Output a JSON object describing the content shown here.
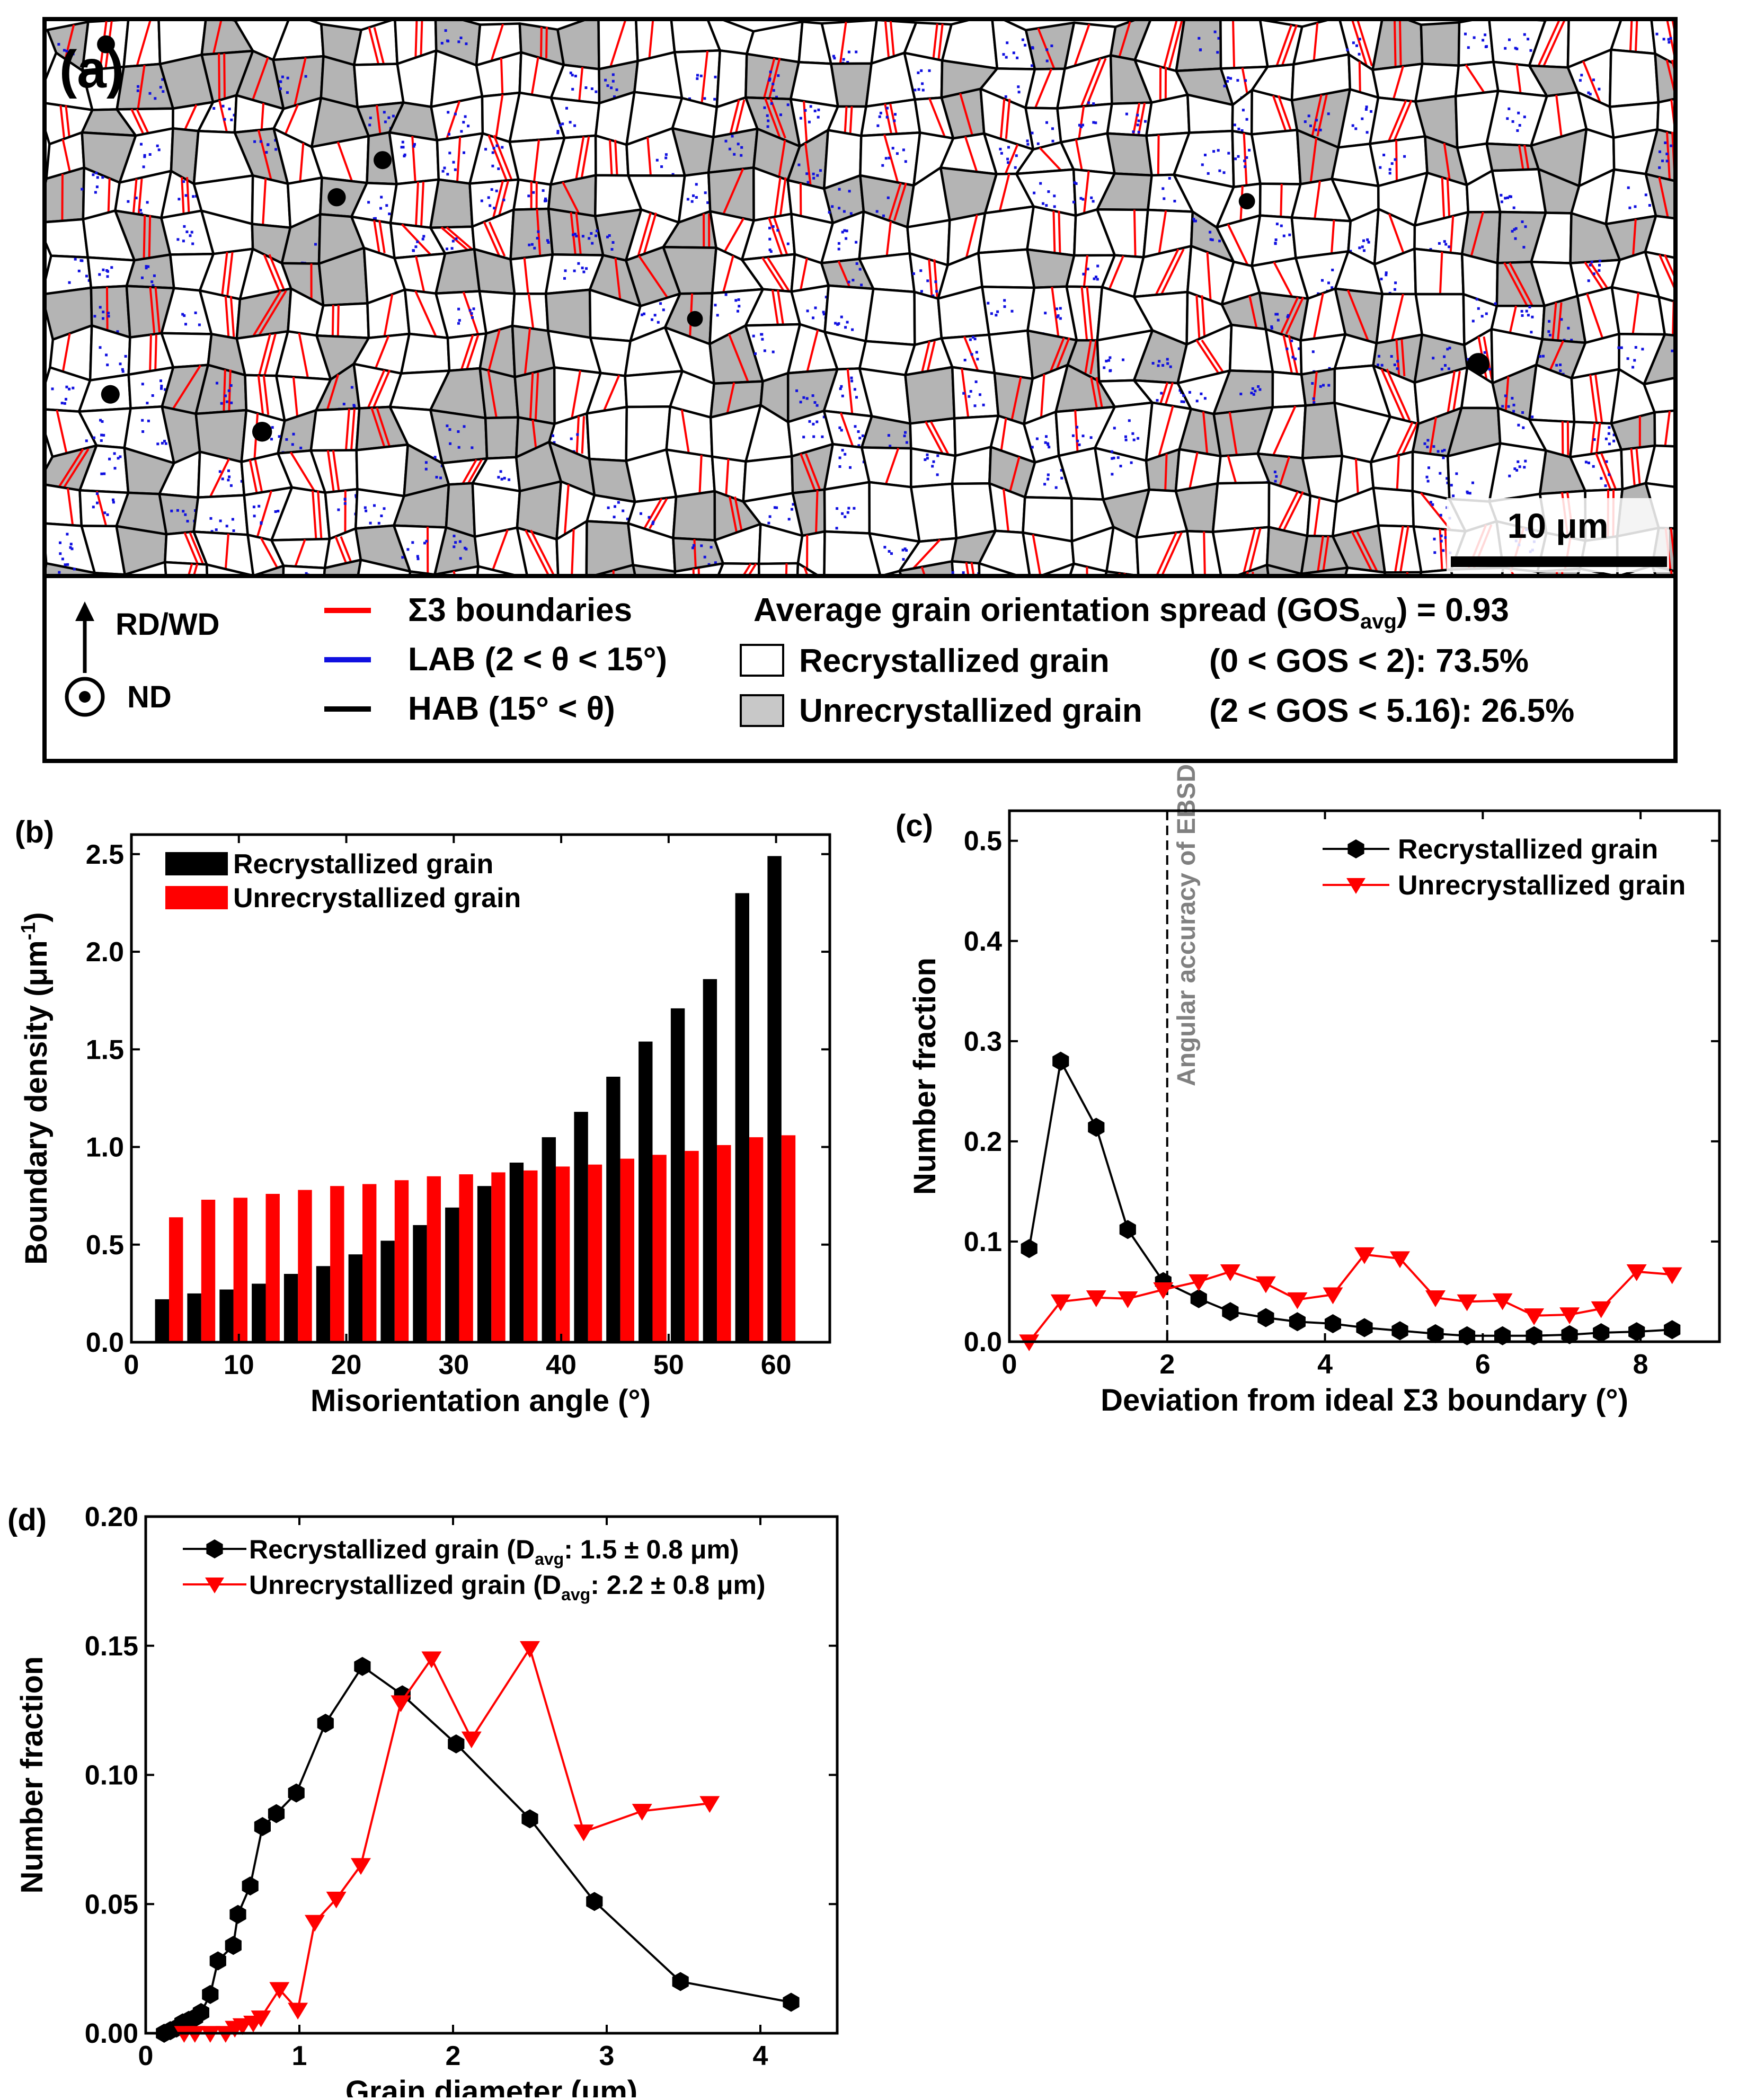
{
  "colors": {
    "recrystallized": "#000000",
    "unrecrystallized": "#ff0000",
    "sigma3": "#ff0000",
    "lab": "#1010e0",
    "hab": "#000000",
    "grain_gray": "#b4b4b4",
    "ebsd_line": "#808080"
  },
  "panel_a": {
    "label": "(a)",
    "scale_bar": "10 μm",
    "legend": {
      "direction_up": "RD/WD",
      "direction_out": "ND",
      "sigma3": "Σ3 boundaries",
      "lab": "LAB (2 < θ < 15°)",
      "hab": "HAB (15° < θ)",
      "gos_title_pre": "Average grain orientation spread (GOS",
      "gos_title_sub": "avg",
      "gos_title_post": ") = 0.93",
      "recrystallized_label": "Recrystallized grain",
      "recrystallized_range": "(0 < GOS < 2): 73.5%",
      "unrecrystallized_label": "Unrecrystallized grain",
      "unrecrystallized_range": "(2 < GOS < 5.16): 26.5%"
    }
  },
  "chart_data": [
    {
      "id": "b",
      "panel_label": "(b)",
      "type": "bar",
      "xlabel": "Misorientation angle (°)",
      "ylabel_pre": "Boundary density (",
      "ylabel_unit": "μm",
      "ylabel_exp": "-1",
      "ylabel_post": ")",
      "xlim": [
        0,
        65
      ],
      "ylim": [
        0,
        2.6
      ],
      "xticks": [
        0,
        10,
        20,
        30,
        40,
        50,
        60
      ],
      "xtick_labels": [
        "0",
        "10",
        "20",
        "30",
        "40",
        "50",
        "60"
      ],
      "yticks": [
        0,
        0.5,
        1.0,
        1.5,
        2.0,
        2.5
      ],
      "ytick_labels": [
        "0.0",
        "0.5",
        "1.0",
        "1.5",
        "2.0",
        "2.5"
      ],
      "bar_width": 1.3,
      "x": [
        3.5,
        6.5,
        9.5,
        12.5,
        15.5,
        18.5,
        21.5,
        24.5,
        27.5,
        30.5,
        33.5,
        36.5,
        39.5,
        42.5,
        45.5,
        48.5,
        51.5,
        54.5,
        57.5,
        60.5
      ],
      "series": [
        {
          "name": "Recrystallized grain",
          "offset": -0.65,
          "values": [
            0.22,
            0.25,
            0.27,
            0.3,
            0.35,
            0.39,
            0.45,
            0.52,
            0.6,
            0.69,
            0.8,
            0.92,
            1.05,
            1.18,
            1.36,
            1.54,
            1.71,
            1.86,
            2.3,
            2.49
          ]
        },
        {
          "name": "Unrecrystallized grain",
          "offset": 0.65,
          "values": [
            0.64,
            0.73,
            0.74,
            0.76,
            0.78,
            0.8,
            0.81,
            0.83,
            0.85,
            0.86,
            0.87,
            0.88,
            0.9,
            0.91,
            0.94,
            0.96,
            0.98,
            1.01,
            1.05,
            1.06
          ]
        }
      ],
      "legend": [
        "Recrystallized grain",
        "Unrecrystallized grain"
      ]
    },
    {
      "id": "c",
      "panel_label": "(c)",
      "type": "line",
      "xlabel": "Deviation from ideal Σ3 boundary (°)",
      "ylabel": "Number fraction",
      "xlim": [
        0,
        9
      ],
      "ylim": [
        0,
        0.53
      ],
      "xticks": [
        0,
        2,
        4,
        6,
        8
      ],
      "xtick_labels": [
        "0",
        "2",
        "4",
        "6",
        "8"
      ],
      "yticks": [
        0,
        0.1,
        0.2,
        0.3,
        0.4,
        0.5
      ],
      "ytick_labels": [
        "0.0",
        "0.1",
        "0.2",
        "0.3",
        "0.4",
        "0.5"
      ],
      "annotation": {
        "text": "Angular accuracy of EBSD",
        "x": 2
      },
      "series": [
        {
          "name": "Recrystallized grain",
          "marker": "hexagon",
          "x": [
            0.25,
            0.65,
            1.1,
            1.5,
            1.95,
            2.4,
            2.8,
            3.25,
            3.65,
            4.1,
            4.5,
            4.95,
            5.4,
            5.8,
            6.25,
            6.65,
            7.1,
            7.5,
            7.95,
            8.4
          ],
          "y": [
            0.093,
            0.28,
            0.214,
            0.112,
            0.06,
            0.043,
            0.03,
            0.024,
            0.02,
            0.018,
            0.014,
            0.011,
            0.008,
            0.006,
            0.006,
            0.006,
            0.007,
            0.009,
            0.01,
            0.012
          ]
        },
        {
          "name": "Unrecrystallized grain",
          "marker": "triangle-down",
          "x": [
            0.25,
            0.65,
            1.1,
            1.5,
            1.95,
            2.4,
            2.8,
            3.25,
            3.65,
            4.1,
            4.5,
            4.95,
            5.4,
            5.8,
            6.25,
            6.65,
            7.1,
            7.5,
            7.95,
            8.4
          ],
          "y": [
            0.0,
            0.04,
            0.044,
            0.043,
            0.052,
            0.06,
            0.07,
            0.058,
            0.042,
            0.047,
            0.087,
            0.083,
            0.044,
            0.04,
            0.041,
            0.026,
            0.027,
            0.033,
            0.07,
            0.067
          ]
        }
      ],
      "legend": [
        "Recrystallized grain",
        "Unrecrystallized grain"
      ]
    },
    {
      "id": "d",
      "panel_label": "(d)",
      "type": "line",
      "xlabel": "Grain diameter (μm)",
      "ylabel": "Number fraction",
      "xlim": [
        0,
        4.5
      ],
      "ylim": [
        0,
        0.2
      ],
      "xticks": [
        0,
        1,
        2,
        3,
        4
      ],
      "xtick_labels": [
        "0",
        "1",
        "2",
        "3",
        "4"
      ],
      "yticks": [
        0,
        0.05,
        0.1,
        0.15,
        0.2
      ],
      "ytick_labels": [
        "0.00",
        "0.05",
        "0.10",
        "0.15",
        "0.20"
      ],
      "series": [
        {
          "name": "Recrystallized grain",
          "marker": "hexagon",
          "legend_pre": "Recrystallized grain  (D",
          "legend_sub": "avg",
          "legend_post": ": 1.5 ± 0.8 μm)",
          "x": [
            0.12,
            0.16,
            0.2,
            0.24,
            0.28,
            0.32,
            0.36,
            0.42,
            0.47,
            0.57,
            0.6,
            0.68,
            0.76,
            0.85,
            0.98,
            1.17,
            1.41,
            1.67,
            2.02,
            2.5,
            2.92,
            3.48,
            4.2
          ],
          "y": [
            0.0,
            0.001,
            0.002,
            0.004,
            0.005,
            0.006,
            0.008,
            0.015,
            0.028,
            0.034,
            0.046,
            0.057,
            0.08,
            0.085,
            0.093,
            0.12,
            0.142,
            0.131,
            0.112,
            0.083,
            0.051,
            0.02,
            0.012
          ]
        },
        {
          "name": "Unrecrystallized grain",
          "marker": "triangle-down",
          "legend_pre": "Unrecrystallized grain (D",
          "legend_sub": "avg",
          "legend_post": ": 2.2 ± 0.8 μm)",
          "x": [
            0.25,
            0.32,
            0.42,
            0.52,
            0.58,
            0.63,
            0.7,
            0.75,
            0.87,
            0.99,
            1.1,
            1.24,
            1.4,
            1.66,
            1.86,
            2.12,
            2.5,
            2.85,
            3.23,
            3.67
          ],
          "y": [
            0.0,
            0.0,
            0.0,
            0.0,
            0.002,
            0.003,
            0.004,
            0.006,
            0.017,
            0.009,
            0.043,
            0.052,
            0.065,
            0.128,
            0.145,
            0.114,
            0.149,
            0.078,
            0.086,
            0.089
          ]
        }
      ]
    }
  ]
}
